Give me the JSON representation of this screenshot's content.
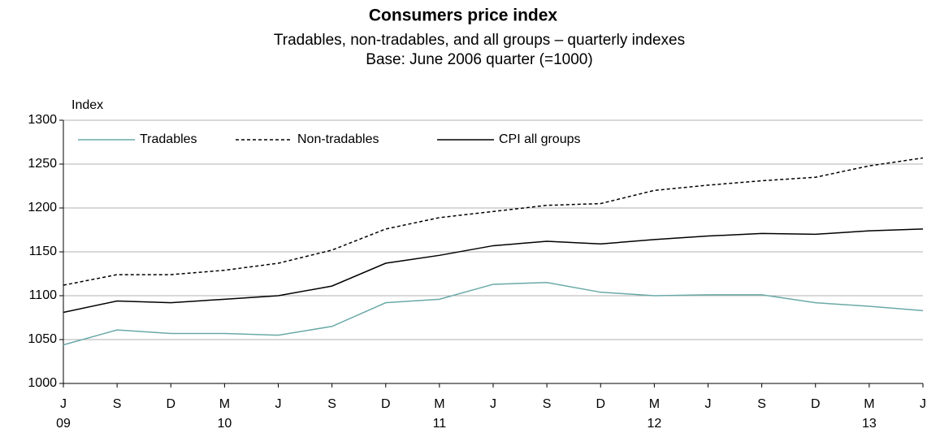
{
  "chart_data": {
    "type": "line",
    "title": "Consumers price index",
    "subtitle": "Tradables,  non-tradables,  and all groups – quarterly indexes",
    "note": "Base: June 2006 quarter (=1000)",
    "y_label": "Index",
    "categories": [
      "J",
      "S",
      "D",
      "M",
      "J",
      "S",
      "D",
      "M",
      "J",
      "S",
      "D",
      "M",
      "J",
      "S",
      "D",
      "M",
      "J"
    ],
    "year_labels": [
      "09",
      null,
      null,
      "10",
      null,
      null,
      null,
      "11",
      null,
      null,
      null,
      "12",
      null,
      null,
      null,
      "13",
      null
    ],
    "series": [
      {
        "name": "Tradables",
        "color": "#6aa9a8",
        "dashed": false,
        "values": [
          1044,
          1061,
          1057,
          1057,
          1055,
          1065,
          1092,
          1096,
          1113,
          1115,
          1104,
          1100,
          1101,
          1101,
          1092,
          1088,
          1083
        ]
      },
      {
        "name": "Non-tradables",
        "color": "#000000",
        "dashed": true,
        "values": [
          1112,
          1124,
          1124,
          1129,
          1137,
          1152,
          1176,
          1189,
          1196,
          1203,
          1205,
          1220,
          1226,
          1231,
          1235,
          1248,
          1257
        ]
      },
      {
        "name": "CPI all groups",
        "color": "#000000",
        "dashed": false,
        "values": [
          1081,
          1094,
          1092,
          1096,
          1100,
          1111,
          1137,
          1146,
          1157,
          1162,
          1159,
          1164,
          1168,
          1171,
          1170,
          1174,
          1176
        ]
      }
    ],
    "ylim": [
      1000,
      1300
    ],
    "yticks": [
      1000,
      1050,
      1100,
      1150,
      1200,
      1250,
      1300
    ],
    "grid": true,
    "legend": "top-left"
  }
}
